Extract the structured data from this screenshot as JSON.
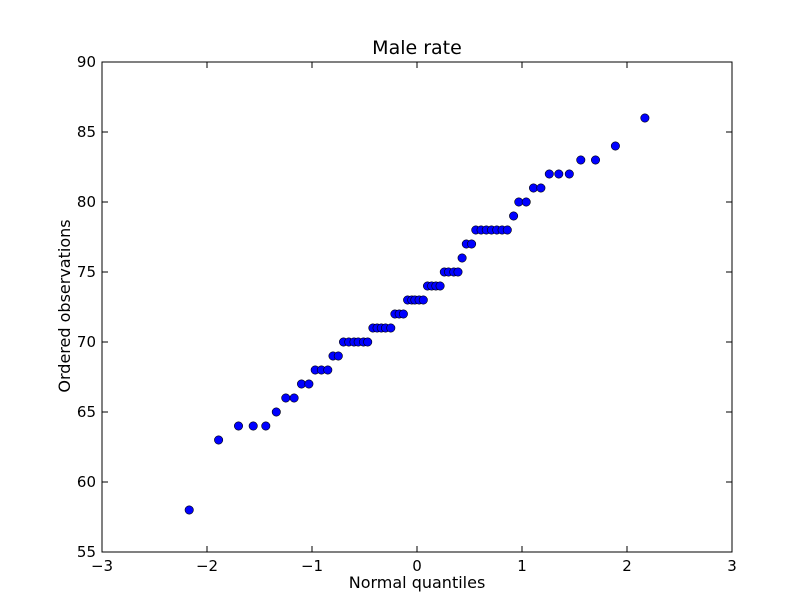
{
  "chart_data": {
    "type": "scatter",
    "title": "Male rate",
    "xlabel": "Normal quantiles",
    "ylabel": "Ordered observations",
    "xlim": [
      -3,
      3
    ],
    "ylim": [
      55,
      90
    ],
    "xticks": [
      -3,
      -2,
      -1,
      0,
      1,
      2,
      3
    ],
    "yticks": [
      55,
      60,
      65,
      70,
      75,
      80,
      85,
      90
    ],
    "xtick_labels": [
      "−3",
      "−2",
      "−1",
      "0",
      "1",
      "2",
      "3"
    ],
    "ytick_labels": [
      "55",
      "60",
      "65",
      "70",
      "75",
      "80",
      "85",
      "90"
    ],
    "grid": false,
    "marker_color": "#0000ff",
    "series": [
      {
        "x": [
          -2.17,
          -1.89,
          -1.7,
          -1.56,
          -1.44,
          -1.34,
          -1.25,
          -1.17,
          -1.1,
          -1.03,
          -0.97,
          -0.91,
          -0.85,
          -0.8,
          -0.75,
          -0.7,
          -0.65,
          -0.6,
          -0.56,
          -0.51,
          -0.47,
          -0.42,
          -0.38,
          -0.34,
          -0.3,
          -0.25,
          -0.21,
          -0.17,
          -0.13,
          -0.09,
          -0.05,
          -0.02,
          0.02,
          0.06,
          0.1,
          0.14,
          0.18,
          0.22,
          0.26,
          0.3,
          0.35,
          0.39,
          0.43,
          0.47,
          0.52,
          0.56,
          0.61,
          0.66,
          0.71,
          0.76,
          0.81,
          0.86,
          0.92,
          0.97,
          1.04,
          1.11,
          1.18,
          1.26,
          1.35,
          1.45,
          1.56,
          1.7,
          1.89,
          2.17
        ],
        "y": [
          58,
          63,
          64,
          64,
          64,
          65,
          66,
          66,
          67,
          67,
          68,
          68,
          68,
          69,
          69,
          70,
          70,
          70,
          70,
          70,
          70,
          71,
          71,
          71,
          71,
          71,
          72,
          72,
          72,
          73,
          73,
          73,
          73,
          73,
          74,
          74,
          74,
          74,
          75,
          75,
          75,
          75,
          76,
          77,
          77,
          78,
          78,
          78,
          78,
          78,
          78,
          78,
          79,
          80,
          80,
          81,
          81,
          82,
          82,
          82,
          83,
          83,
          84,
          86
        ]
      }
    ]
  }
}
